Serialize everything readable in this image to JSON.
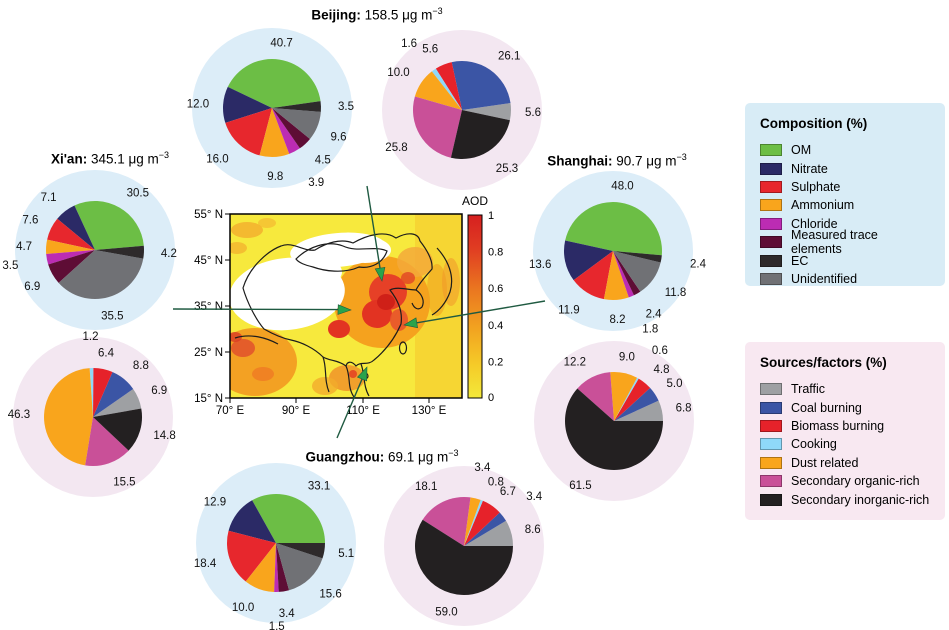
{
  "cities": [
    {
      "id": "beijing",
      "name": "Beijing",
      "pm25": 158.5,
      "bold": "Beijing:",
      "rest": " 158.5 μg m",
      "sup": "−3"
    },
    {
      "id": "xian",
      "name": "Xi'an",
      "pm25": 345.1,
      "bold": "Xi'an:",
      "rest": " 345.1 μg m",
      "sup": "−3"
    },
    {
      "id": "shanghai",
      "name": "Shanghai",
      "pm25": 90.7,
      "bold": "Shanghai:",
      "rest": " 90.7 μg m",
      "sup": "−3"
    },
    {
      "id": "guangzhou",
      "name": "Guangzhou",
      "pm25": 69.1,
      "bold": "Guangzhou:",
      "rest": " 69.1 μg m",
      "sup": "−3"
    }
  ],
  "legends": {
    "composition": {
      "title": "Composition (%)",
      "panel_bg": "#d8ecf6",
      "halo_bg": "#dcedf8",
      "items": [
        {
          "label": "OM",
          "color": "#6cbe45"
        },
        {
          "label": "Nitrate",
          "color": "#2b2a66"
        },
        {
          "label": "Sulphate",
          "color": "#e7272d"
        },
        {
          "label": "Ammonium",
          "color": "#f9a51c"
        },
        {
          "label": "Chloride",
          "color": "#bc2cb3"
        },
        {
          "label": "Measured trace elements",
          "color": "#5e0d35"
        },
        {
          "label": "EC",
          "color": "#2e2a2b"
        },
        {
          "label": "Unidentified",
          "color": "#707175"
        }
      ]
    },
    "sources": {
      "title": "Sources/factors (%)",
      "panel_bg": "#f8e8f1",
      "halo_bg": "#f3e7f1",
      "items": [
        {
          "label": "Traffic",
          "color": "#9ea0a3"
        },
        {
          "label": "Coal burning",
          "color": "#3b55a5"
        },
        {
          "label": "Biomass burning",
          "color": "#e6222a"
        },
        {
          "label": "Cooking",
          "color": "#8fd9f9"
        },
        {
          "label": "Dust related",
          "color": "#f9a51c"
        },
        {
          "label": "Secondary organic-rich",
          "color": "#c95098"
        },
        {
          "label": "Secondary inorganic-rich",
          "color": "#232021"
        }
      ]
    }
  },
  "chart_data": [
    {
      "id": "beijing-composition",
      "type": "pie",
      "city": "Beijing",
      "group": "composition",
      "title": "Beijing: 158.5 μg m−3",
      "categories": [
        "OM",
        "Nitrate",
        "Sulphate",
        "Ammonium",
        "Chloride",
        "Measured trace elements",
        "EC",
        "Unidentified"
      ],
      "values": [
        40.7,
        12.0,
        16.0,
        9.8,
        3.9,
        4.5,
        3.5,
        9.6
      ],
      "start_angle_deg": 8
    },
    {
      "id": "beijing-sources",
      "type": "pie",
      "city": "Beijing",
      "group": "sources",
      "title": "Beijing: 158.5 μg m−3",
      "categories": [
        "Traffic",
        "Coal burning",
        "Biomass burning",
        "Cooking",
        "Dust related",
        "Secondary organic-rich",
        "Secondary inorganic-rich"
      ],
      "values": [
        5.6,
        26.1,
        5.6,
        1.6,
        10.0,
        25.8,
        25.3
      ],
      "start_angle_deg": -12
    },
    {
      "id": "xian-composition",
      "type": "pie",
      "city": "Xi'an",
      "group": "composition",
      "title": "Xi'an: 345.1 μg m−3",
      "categories": [
        "OM",
        "Nitrate",
        "Sulphate",
        "Ammonium",
        "Chloride",
        "Measured trace elements",
        "EC",
        "Unidentified"
      ],
      "values": [
        30.5,
        7.1,
        7.6,
        4.7,
        3.5,
        6.9,
        4.2,
        35.5
      ],
      "start_angle_deg": 5
    },
    {
      "id": "xian-sources",
      "type": "pie",
      "city": "Xi'an",
      "group": "sources",
      "title": "Xi'an: 345.1 μg m−3",
      "categories": [
        "Traffic",
        "Coal burning",
        "Biomass burning",
        "Cooking",
        "Dust related",
        "Secondary organic-rich",
        "Secondary inorganic-rich"
      ],
      "values": [
        6.9,
        8.8,
        6.4,
        1.2,
        46.3,
        15.5,
        14.8
      ],
      "start_angle_deg": 10
    },
    {
      "id": "shanghai-composition",
      "type": "pie",
      "city": "Shanghai",
      "group": "composition",
      "title": "Shanghai: 90.7 μg m−3",
      "categories": [
        "OM",
        "Nitrate",
        "Sulphate",
        "Ammonium",
        "Chloride",
        "Measured trace elements",
        "EC",
        "Unidentified"
      ],
      "values": [
        48.0,
        13.6,
        11.9,
        8.2,
        1.8,
        2.4,
        2.4,
        11.8
      ],
      "start_angle_deg": -5
    },
    {
      "id": "shanghai-sources",
      "type": "pie",
      "city": "Shanghai",
      "group": "sources",
      "title": "Shanghai: 90.7 μg m−3",
      "categories": [
        "Traffic",
        "Coal burning",
        "Biomass burning",
        "Cooking",
        "Dust related",
        "Secondary organic-rich",
        "Secondary inorganic-rich"
      ],
      "values": [
        6.8,
        5.0,
        4.8,
        0.6,
        9.0,
        12.2,
        61.5
      ],
      "start_angle_deg": 0
    },
    {
      "id": "guangzhou-composition",
      "type": "pie",
      "city": "Guangzhou",
      "group": "composition",
      "title": "Guangzhou: 69.1 μg m−3",
      "categories": [
        "OM",
        "Nitrate",
        "Sulphate",
        "Ammonium",
        "Chloride",
        "Measured trace elements",
        "EC",
        "Unidentified"
      ],
      "values": [
        33.1,
        12.9,
        18.4,
        10.0,
        1.5,
        3.4,
        5.1,
        15.6
      ],
      "start_angle_deg": 0
    },
    {
      "id": "guangzhou-sources",
      "type": "pie",
      "city": "Guangzhou",
      "group": "sources",
      "title": "Guangzhou: 69.1 μg m−3",
      "categories": [
        "Traffic",
        "Coal burning",
        "Biomass burning",
        "Cooking",
        "Dust related",
        "Secondary organic-rich",
        "Secondary inorganic-rich"
      ],
      "values": [
        8.6,
        3.4,
        6.7,
        0.8,
        3.4,
        18.1,
        59.0
      ],
      "start_angle_deg": 0
    }
  ],
  "map": {
    "colorbar_title": "AOD",
    "colorbar_ticks": [
      "1",
      "0.8",
      "0.6",
      "0.4",
      "0.2",
      "0"
    ],
    "x_ticks": [
      "70° E",
      "90° E",
      "110° E",
      "130° E"
    ],
    "y_ticks": [
      "55° N",
      "45° N",
      "35° N",
      "25° N",
      "15° N"
    ]
  },
  "annotations": {
    "line_color": "#1f5a41",
    "arrow_color": "#2aa34b"
  }
}
